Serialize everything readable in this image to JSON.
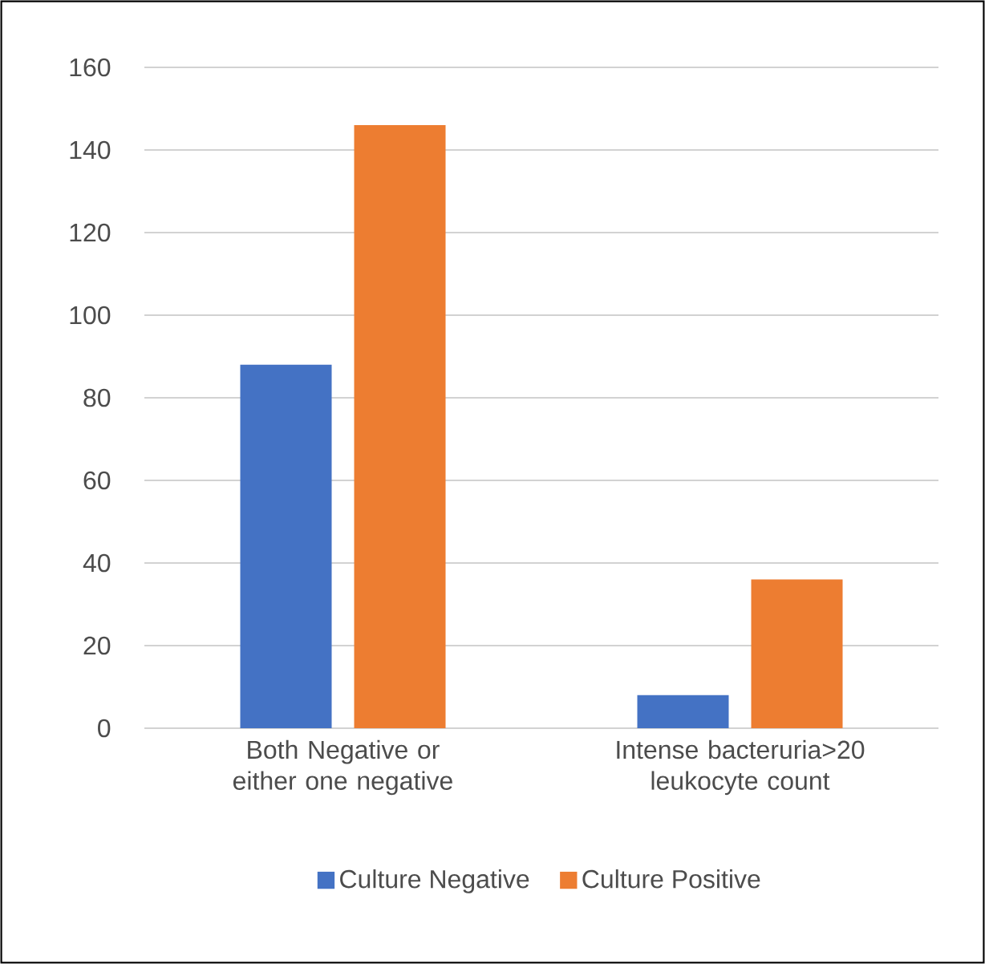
{
  "chart_data": {
    "type": "bar",
    "categories": [
      "Both Negative or either one negative",
      "Intense bacteruria>20 leukocyte count"
    ],
    "series": [
      {
        "name": "Culture Negative",
        "color": "#4472c4",
        "values": [
          88,
          8
        ]
      },
      {
        "name": "Culture Positive",
        "color": "#ed7d31",
        "values": [
          146,
          36
        ]
      }
    ],
    "ylim": [
      0,
      160
    ],
    "yticks": [
      0,
      20,
      40,
      60,
      80,
      100,
      120,
      140,
      160
    ],
    "grid": "y",
    "legend": "bottom"
  }
}
